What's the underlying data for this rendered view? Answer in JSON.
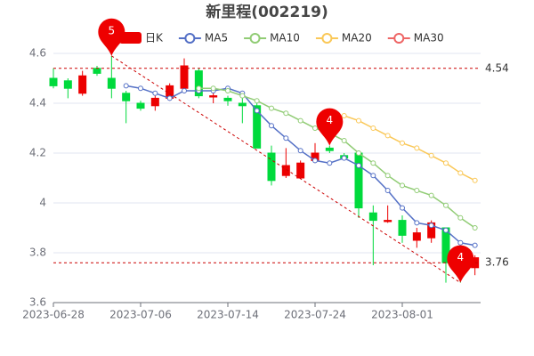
{
  "chart_data": {
    "type": "candlestick",
    "title": "新里程(002219)",
    "categories": [
      "2023-06-28",
      null,
      null,
      null,
      null,
      null,
      "2023-07-06",
      null,
      null,
      null,
      null,
      null,
      "2023-07-14",
      null,
      null,
      null,
      null,
      null,
      "2023-07-24",
      null,
      null,
      null,
      null,
      null,
      "2023-08-01",
      null,
      null,
      null,
      null,
      null
    ],
    "candles": {
      "name": "日K",
      "up_color": "#ec0000",
      "down_color": "#00da3c",
      "open": [
        4.5,
        4.49,
        4.44,
        4.54,
        4.5,
        4.44,
        4.4,
        4.39,
        4.42,
        4.46,
        4.53,
        4.425,
        4.42,
        4.4,
        4.39,
        4.2,
        4.11,
        4.1,
        4.17,
        4.22,
        4.19,
        4.2,
        3.96,
        3.925,
        3.93,
        3.85,
        3.86,
        3.9,
        3.76,
        3.74
      ],
      "close": [
        4.47,
        4.46,
        4.51,
        4.52,
        4.46,
        4.41,
        4.38,
        4.42,
        4.47,
        4.55,
        4.43,
        4.43,
        4.41,
        4.39,
        4.22,
        4.09,
        4.15,
        4.16,
        4.2,
        4.21,
        4.18,
        3.98,
        3.93,
        3.93,
        3.87,
        3.88,
        3.92,
        3.76,
        3.755,
        3.78
      ],
      "low": [
        4.46,
        4.42,
        4.43,
        4.51,
        4.42,
        4.32,
        4.37,
        4.37,
        4.41,
        4.44,
        4.42,
        4.4,
        4.39,
        4.32,
        4.22,
        4.07,
        4.1,
        4.1,
        4.16,
        4.2,
        4.17,
        3.94,
        3.75,
        3.92,
        3.84,
        3.82,
        3.84,
        3.68,
        3.68,
        3.71
      ],
      "high": [
        4.54,
        4.5,
        4.53,
        4.55,
        4.59,
        4.45,
        4.41,
        4.43,
        4.48,
        4.58,
        4.54,
        4.46,
        4.43,
        4.42,
        4.4,
        4.23,
        4.22,
        4.17,
        4.24,
        4.23,
        4.2,
        4.21,
        3.99,
        3.99,
        3.95,
        3.9,
        3.93,
        3.9,
        3.78,
        3.79
      ]
    },
    "series": [
      {
        "name": "MA5",
        "color": "#5470c6",
        "values": [
          null,
          null,
          null,
          null,
          null,
          4.47,
          4.46,
          4.44,
          4.42,
          4.45,
          4.45,
          4.45,
          4.46,
          4.44,
          4.37,
          4.31,
          4.26,
          4.21,
          4.17,
          4.16,
          4.18,
          4.15,
          4.11,
          4.05,
          3.98,
          3.92,
          3.91,
          3.89,
          3.84,
          3.83
        ]
      },
      {
        "name": "MA10",
        "color": "#91cc75",
        "values": [
          null,
          null,
          null,
          null,
          null,
          null,
          null,
          null,
          null,
          null,
          4.46,
          4.46,
          4.45,
          4.43,
          4.41,
          4.38,
          4.36,
          4.33,
          4.3,
          4.28,
          4.25,
          4.2,
          4.16,
          4.11,
          4.07,
          4.05,
          4.03,
          3.99,
          3.94,
          3.9
        ]
      },
      {
        "name": "MA20",
        "color": "#fac858",
        "values": [
          null,
          null,
          null,
          null,
          null,
          null,
          null,
          null,
          null,
          null,
          null,
          null,
          null,
          null,
          null,
          null,
          null,
          null,
          null,
          null,
          4.35,
          4.33,
          4.3,
          4.27,
          4.24,
          4.22,
          4.19,
          4.16,
          4.12,
          4.09
        ]
      },
      {
        "name": "MA30",
        "color": "#ee6666",
        "values": [
          null,
          null,
          null,
          null,
          null,
          null,
          null,
          null,
          null,
          null,
          null,
          null,
          null,
          null,
          null,
          null,
          null,
          null,
          null,
          null,
          null,
          null,
          null,
          null,
          null,
          null,
          null,
          null,
          null,
          null
        ]
      }
    ],
    "ylim": [
      3.6,
      4.6
    ],
    "yticks": [
      3.6,
      3.8,
      4,
      4.2,
      4.4,
      4.6
    ],
    "grid": true,
    "hlines": [
      {
        "value": 4.54,
        "label": "4.54"
      },
      {
        "value": 3.76,
        "label": "3.76"
      }
    ],
    "pins": [
      {
        "index": 4,
        "value": 4.59,
        "label": "5"
      },
      {
        "index": 19,
        "value": 4.23,
        "label": "4"
      },
      {
        "index": 28,
        "value": 3.68,
        "label": "4"
      }
    ],
    "trend": {
      "from_index": 4,
      "from_value": 4.59,
      "to_index": 28,
      "to_value": 3.68
    }
  }
}
